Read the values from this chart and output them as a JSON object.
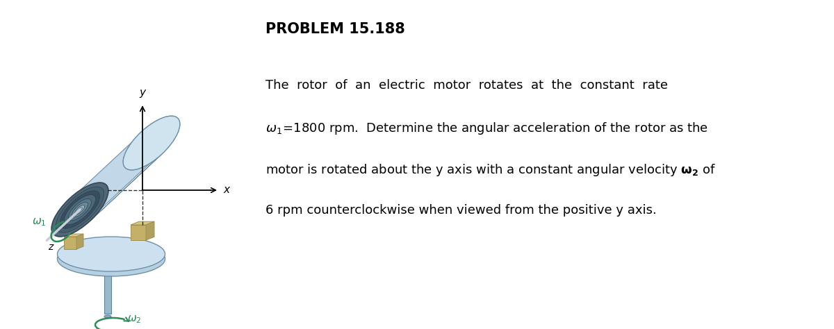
{
  "title": "PROBLEM 15.188",
  "line1": "The  rotor  of  an  electric  motor  rotates  at  the  constant  rate",
  "line2_a": "ω",
  "line2_b": " =1800 rpm.  Determine the angular acceleration of the rotor as the",
  "line3": "motor is rotated about the y axis with a constant angular velocity ω",
  "line3_bold_omega": "ω₂",
  "line3_suffix": " of",
  "line4": "6 rpm counterclockwise when viewed from the positive y axis.",
  "bg_color": "#ffffff",
  "text_color": "#000000",
  "title_fontsize": 15,
  "body_fontsize": 13,
  "omega_color": "#2d8a57",
  "motor_light": "#c2d8e8",
  "motor_mid": "#a0bdd0",
  "motor_dark": "#7090a8",
  "motor_face_dark": "#4a6070",
  "motor_inner": "#384858",
  "base_color": "#b5d0e2",
  "shaft_color": "#98b8cc",
  "block_color": "#c4b068",
  "block_edge": "#a09050"
}
